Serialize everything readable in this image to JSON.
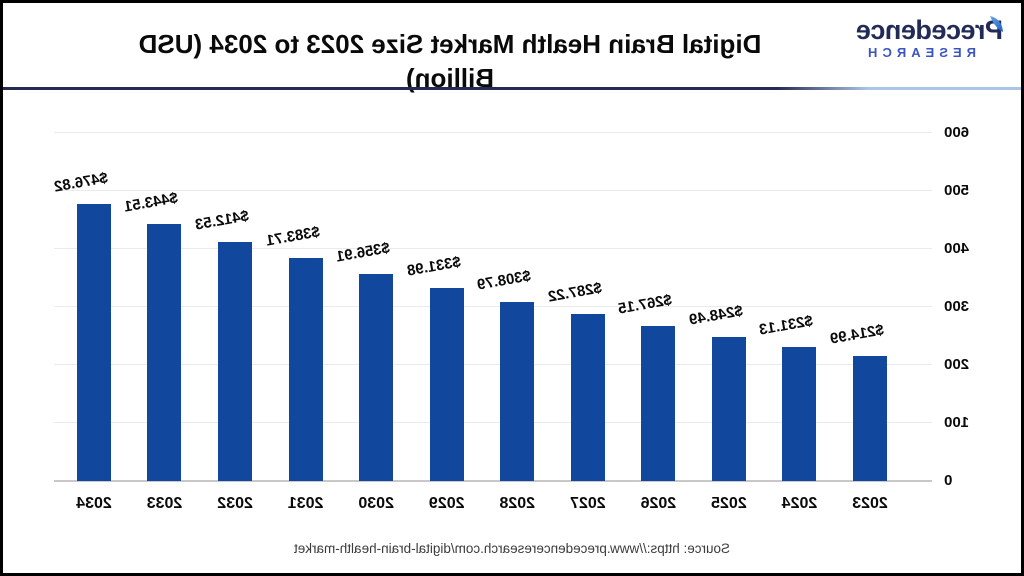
{
  "header": {
    "logo": {
      "brand": "Precedence",
      "sub": "RESEARCH"
    }
  },
  "chart_data": {
    "type": "bar",
    "title": "Digital Brain Health Market Size 2023 to 2034 (USD Billion)",
    "categories": [
      "2023",
      "2024",
      "2025",
      "2026",
      "2027",
      "2028",
      "2029",
      "2030",
      "2031",
      "2032",
      "2033",
      "2034"
    ],
    "values": [
      214.99,
      231.13,
      248.49,
      267.15,
      287.22,
      308.79,
      331.98,
      356.91,
      383.71,
      412.53,
      443.51,
      476.82
    ],
    "value_labels": [
      "$214.99",
      "$231.13",
      "$248.49",
      "$267.15",
      "$287.22",
      "$308.79",
      "$331.98",
      "$356.91",
      "$383.71",
      "$412.53",
      "$443.51",
      "$476.82"
    ],
    "xlabel": "",
    "ylabel": "",
    "ylim": [
      0,
      600
    ],
    "yticks": [
      0,
      100,
      200,
      300,
      400,
      500,
      600
    ],
    "grid": true,
    "legend": "none",
    "orientation_note": "chart image is horizontally mirrored"
  },
  "footer": {
    "source": "Source: https://www.precedenceresearch.com/digital-brain-health-market"
  },
  "colors": {
    "bar": "#12479e",
    "logo_navy": "#222b57",
    "logo_blue": "#3b55c0",
    "leaf_blue_light": "#6aa5e8",
    "leaf_blue_dark": "#1d5fc0",
    "divider_dark": "#252a52",
    "divider_light": "#a9c6e6"
  }
}
